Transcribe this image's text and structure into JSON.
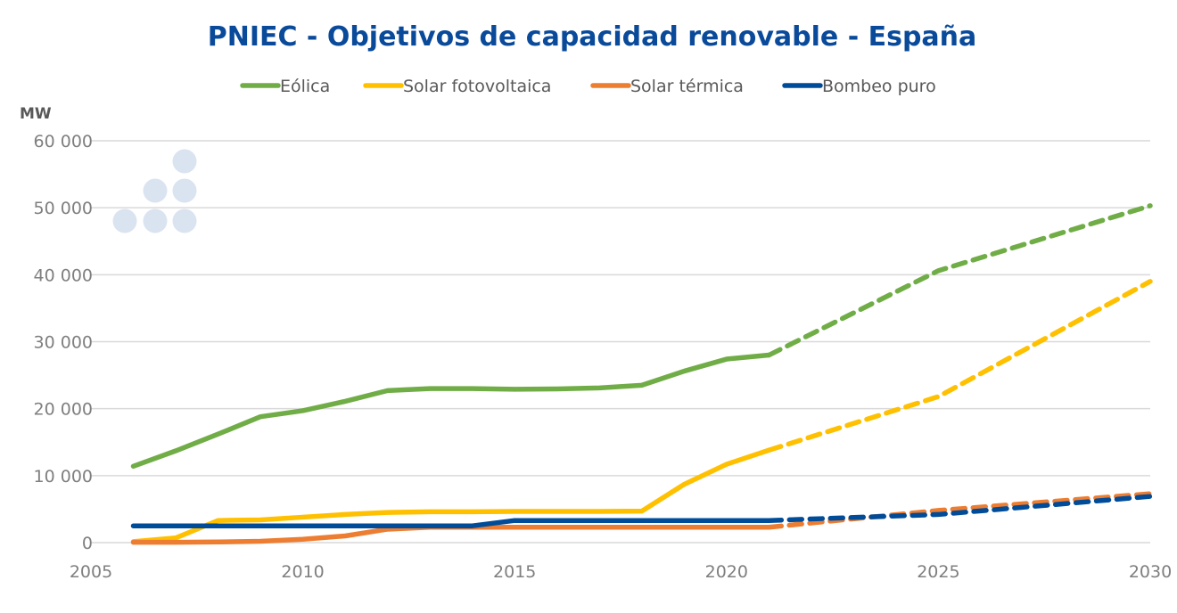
{
  "chart_data": {
    "type": "line",
    "title": "PNIEC - Objetivos de capacidad renovable - España",
    "ylabel": "MW",
    "xlabel": "",
    "xlim": [
      2005,
      2030
    ],
    "ylim": [
      0,
      60000
    ],
    "x_ticks": [
      2005,
      2010,
      2015,
      2020,
      2025,
      2030
    ],
    "y_ticks": [
      0,
      10000,
      20000,
      30000,
      40000,
      50000,
      60000
    ],
    "y_tick_labels": [
      "0",
      "10 000",
      "20 000",
      "30 000",
      "40 000",
      "50 000",
      "60 000"
    ],
    "x_tick_labels": [
      "2005",
      "2010",
      "2015",
      "2020",
      "2025",
      "2030"
    ],
    "grid": true,
    "legend_position": "top-center",
    "series": [
      {
        "name": "Eólica",
        "color": "#70ad47",
        "historical": {
          "x": [
            2006,
            2007,
            2008,
            2009,
            2010,
            2011,
            2012,
            2013,
            2014,
            2015,
            2016,
            2017,
            2018,
            2019,
            2020,
            2021
          ],
          "y": [
            11400,
            13700,
            16200,
            18800,
            19700,
            21100,
            22700,
            23000,
            23000,
            22900,
            22950,
            23100,
            23500,
            25600,
            27400,
            28000
          ]
        },
        "projection": {
          "x": [
            2021,
            2025,
            2030
          ],
          "y": [
            28000,
            40600,
            50300
          ]
        }
      },
      {
        "name": "Solar fotovoltaica",
        "color": "#ffc000",
        "historical": {
          "x": [
            2006,
            2007,
            2008,
            2009,
            2010,
            2011,
            2012,
            2013,
            2014,
            2015,
            2016,
            2017,
            2018,
            2019,
            2020,
            2021
          ],
          "y": [
            150,
            700,
            3300,
            3400,
            3800,
            4200,
            4500,
            4600,
            4600,
            4650,
            4650,
            4650,
            4700,
            8700,
            11700,
            13800
          ]
        },
        "projection": {
          "x": [
            2021,
            2025,
            2030
          ],
          "y": [
            13800,
            21800,
            39000
          ]
        }
      },
      {
        "name": "Solar térmica",
        "color": "#ed7d31",
        "historical": {
          "x": [
            2006,
            2007,
            2008,
            2009,
            2010,
            2011,
            2012,
            2013,
            2014,
            2015,
            2016,
            2017,
            2018,
            2019,
            2020,
            2021
          ],
          "y": [
            50,
            50,
            100,
            200,
            500,
            1000,
            2000,
            2300,
            2300,
            2300,
            2300,
            2300,
            2300,
            2300,
            2300,
            2300
          ]
        },
        "projection": {
          "x": [
            2021,
            2025,
            2030
          ],
          "y": [
            2300,
            4800,
            7300
          ]
        }
      },
      {
        "name": "Bombeo puro",
        "color": "#004c99",
        "historical": {
          "x": [
            2006,
            2007,
            2008,
            2009,
            2010,
            2011,
            2012,
            2013,
            2014,
            2015,
            2016,
            2017,
            2018,
            2019,
            2020,
            2021
          ],
          "y": [
            2500,
            2500,
            2500,
            2500,
            2500,
            2500,
            2500,
            2500,
            2500,
            3300,
            3300,
            3300,
            3300,
            3300,
            3300,
            3300
          ]
        },
        "projection": {
          "x": [
            2021,
            2025,
            2030
          ],
          "y": [
            3300,
            4200,
            6900
          ]
        }
      }
    ]
  },
  "decoration": {
    "logo_icon": "dots-logo-icon",
    "logo_color": "#dae4f1"
  }
}
